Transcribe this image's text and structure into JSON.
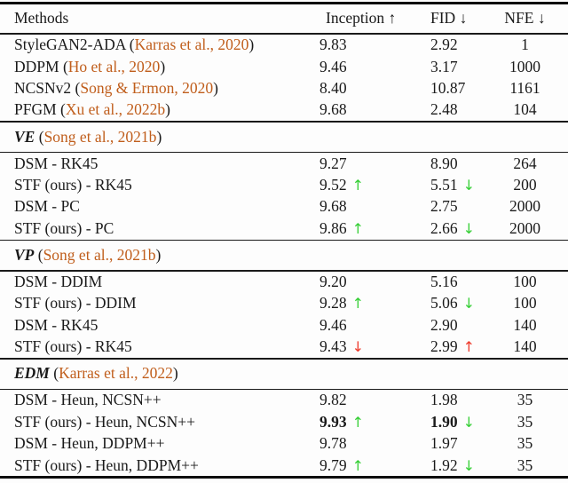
{
  "colors": {
    "citation_orange": "#c05e1c",
    "improvement_green": "#35cf35",
    "regression_red": "#ee3b2c",
    "text_black": "#1a1a1a",
    "rule_black": "#0d0d0d"
  },
  "header": {
    "methods": "Methods",
    "inception": "Inception ↑",
    "fid": "FID ↓",
    "nfe": "NFE ↓"
  },
  "sections": [
    {
      "rows": [
        {
          "prefix": "StyleGAN2-ADA (",
          "cite": "Karras et al., 2020",
          "suffix": ")",
          "inception": "9.83",
          "fid": "2.92",
          "nfe": "1"
        },
        {
          "prefix": "DDPM (",
          "cite": "Ho et al., 2020",
          "suffix": ")",
          "inception": "9.46",
          "fid": "3.17",
          "nfe": "1000"
        },
        {
          "prefix": "NCSNv2 (",
          "cite": "Song & Ermon, 2020",
          "suffix": ")",
          "inception": "8.40",
          "fid": "10.87",
          "nfe": "1161"
        },
        {
          "prefix": "PFGM (",
          "cite": "Xu et al., 2022b",
          "suffix": ")",
          "inception": "9.68",
          "fid": "2.48",
          "nfe": "104"
        }
      ]
    },
    {
      "label": "VE",
      "paren_open": " (",
      "cite": "Song et al., 2021b",
      "paren_close": ")",
      "rows": [
        {
          "prefix": "DSM - RK45",
          "inception": "9.27",
          "fid": "8.90",
          "nfe": "264"
        },
        {
          "prefix": "STF (ours) - RK45",
          "inception": "9.52",
          "inception_arrow": "↑",
          "inception_arrow_color": "green",
          "fid": "5.51",
          "fid_arrow": "↓",
          "fid_arrow_color": "green",
          "nfe": "200"
        },
        {
          "prefix": "DSM - PC",
          "inception": "9.68",
          "fid": "2.75",
          "nfe": "2000"
        },
        {
          "prefix": "STF (ours) - PC",
          "inception": "9.86",
          "inception_arrow": "↑",
          "inception_arrow_color": "green",
          "fid": "2.66",
          "fid_arrow": "↓",
          "fid_arrow_color": "green",
          "nfe": "2000"
        }
      ]
    },
    {
      "label": "VP",
      "paren_open": " (",
      "cite": "Song et al., 2021b",
      "paren_close": ")",
      "rows": [
        {
          "prefix": "DSM - DDIM",
          "inception": "9.20",
          "fid": "5.16",
          "nfe": "100"
        },
        {
          "prefix": "STF (ours) - DDIM",
          "inception": "9.28",
          "inception_arrow": "↑",
          "inception_arrow_color": "green",
          "fid": "5.06",
          "fid_arrow": "↓",
          "fid_arrow_color": "green",
          "nfe": "100"
        },
        {
          "prefix": "DSM - RK45",
          "inception": "9.46",
          "fid": "2.90",
          "nfe": "140"
        },
        {
          "prefix": "STF (ours) - RK45",
          "inception": "9.43",
          "inception_arrow": "↓",
          "inception_arrow_color": "red",
          "fid": "2.99",
          "fid_arrow": "↑",
          "fid_arrow_color": "red",
          "nfe": "140"
        }
      ]
    },
    {
      "label": "EDM",
      "paren_open": " (",
      "cite": "Karras et al., 2022",
      "paren_close": ")",
      "rows": [
        {
          "prefix": "DSM - Heun, NCSN++",
          "inception": "9.82",
          "fid": "1.98",
          "nfe": "35"
        },
        {
          "prefix": "STF (ours) - Heun, NCSN++",
          "inception": "9.93",
          "inception_bold": "true",
          "inception_arrow": "↑",
          "inception_arrow_color": "green",
          "fid": "1.90",
          "fid_bold": "true",
          "fid_arrow": "↓",
          "fid_arrow_color": "green",
          "nfe": "35"
        },
        {
          "prefix": "DSM - Heun, DDPM++",
          "inception": "9.78",
          "fid": "1.97",
          "nfe": "35"
        },
        {
          "prefix": "STF (ours) - Heun, DDPM++",
          "inception": "9.79",
          "inception_arrow": "↑",
          "inception_arrow_color": "green",
          "fid": "1.92",
          "fid_arrow": "↓",
          "fid_arrow_color": "green",
          "nfe": "35"
        }
      ]
    }
  ]
}
